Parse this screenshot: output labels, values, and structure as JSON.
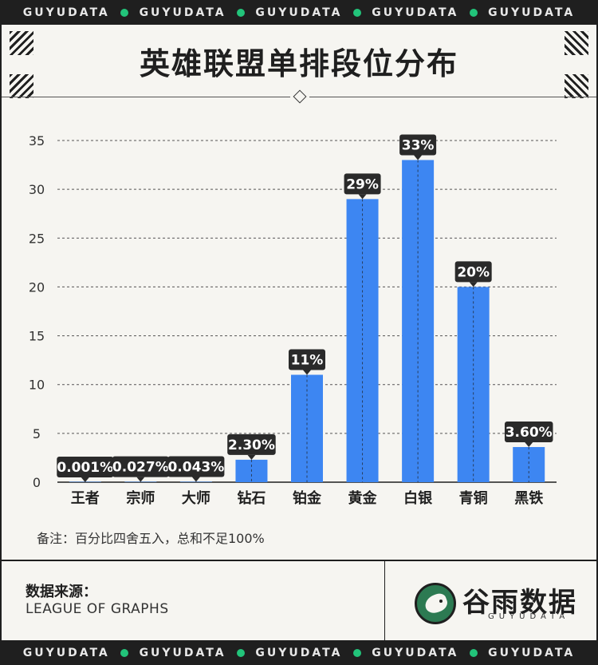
{
  "brand": {
    "strip_word": "GUYUDATA",
    "accent": "#22c47a"
  },
  "title": "英雄联盟单排段位分布",
  "note": "备注：百分比四舍五入，总和不足100%",
  "source": {
    "label": "数据来源：",
    "value": "LEAGUE OF GRAPHS"
  },
  "logo": {
    "name": "谷雨数据",
    "sub": "GUYUDATA"
  },
  "chart_data": {
    "type": "bar",
    "categories": [
      "王者",
      "宗师",
      "大师",
      "钻石",
      "铂金",
      "黄金",
      "白银",
      "青铜",
      "黑铁"
    ],
    "values": [
      0.001,
      0.027,
      0.043,
      2.3,
      11,
      29,
      33,
      20,
      3.6
    ],
    "data_labels": [
      "0.001%",
      "0.027%",
      "0.043%",
      "2.30%",
      "11%",
      "29%",
      "33%",
      "20%",
      "3.60%"
    ],
    "yticks": [
      0,
      5,
      10,
      15,
      20,
      25,
      30,
      35
    ],
    "ylim": [
      0,
      35
    ],
    "grid": true,
    "bar_color": "#3d86f2",
    "label_bg": "#2a2a2a"
  }
}
